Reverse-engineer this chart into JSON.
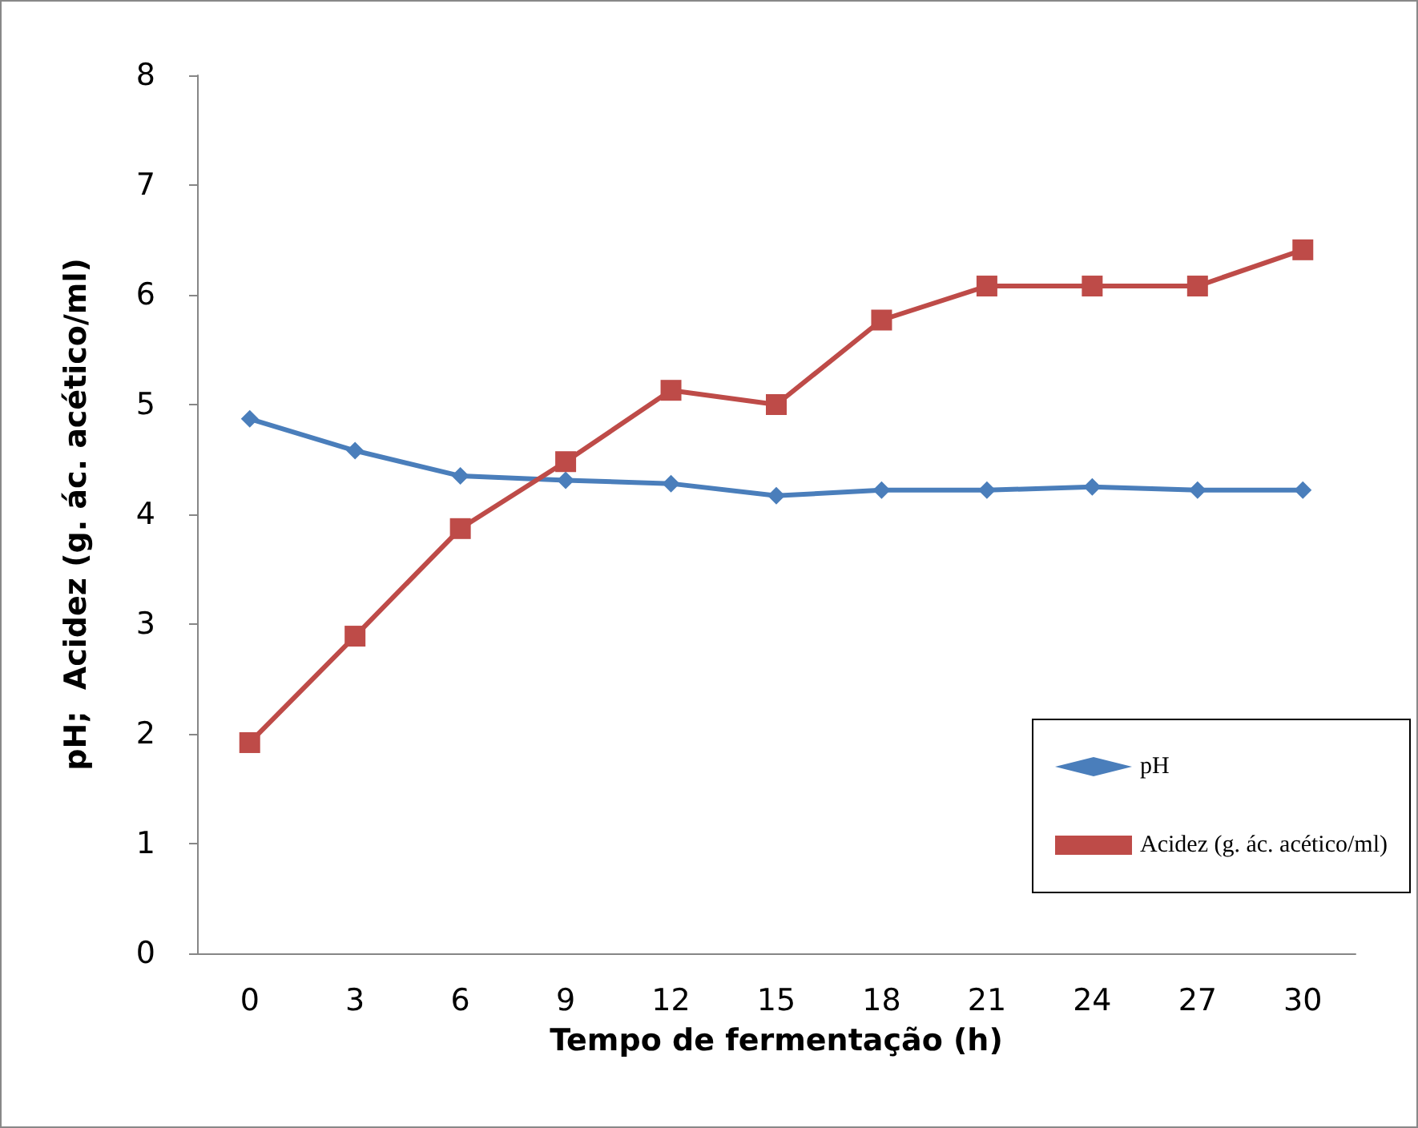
{
  "chart_data": {
    "type": "line",
    "xlabel": "Tempo de fermentação (h)",
    "ylabel": "pH;  Acidez (g. ác. acético/ml)",
    "categories": [
      "0",
      "3",
      "6",
      "9",
      "12",
      "15",
      "18",
      "21",
      "24",
      "27",
      "30"
    ],
    "series": [
      {
        "name": "pH",
        "color": "#4a7ebb",
        "marker": "diamond",
        "values": [
          4.87,
          4.58,
          4.35,
          4.31,
          4.28,
          4.17,
          4.22,
          4.22,
          4.25,
          4.22,
          4.22
        ]
      },
      {
        "name": "Acidez (g. ác. acético/ml)",
        "color": "#be4b48",
        "marker": "square",
        "values": [
          1.92,
          2.89,
          3.87,
          4.48,
          5.13,
          5.0,
          5.77,
          6.08,
          6.08,
          6.08,
          6.41
        ]
      }
    ],
    "ylim": [
      0,
      8
    ],
    "yticks": [
      0,
      1,
      2,
      3,
      4,
      5,
      6,
      7,
      8
    ],
    "grid": false,
    "legend": "bottom right"
  }
}
